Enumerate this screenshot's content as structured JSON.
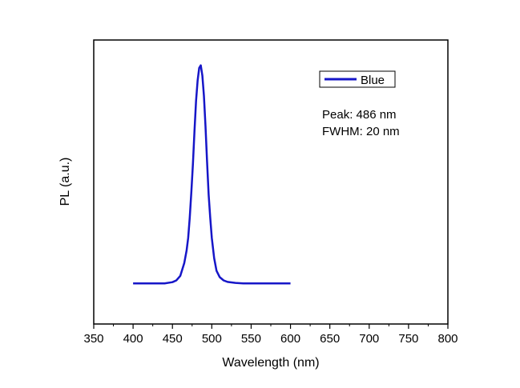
{
  "chart_data": {
    "type": "line",
    "title": "",
    "xlabel": "Wavelength (nm)",
    "ylabel": "PL (a.u.)",
    "xlim": [
      350,
      800
    ],
    "ylim": [
      0,
      1.12
    ],
    "x_ticks": [
      "350",
      "400",
      "450",
      "500",
      "550",
      "600",
      "650",
      "700",
      "750",
      "800"
    ],
    "y_ticks_shown": false,
    "grid": false,
    "legend": {
      "position": "top-right"
    },
    "series": [
      {
        "name": "Blue",
        "color": "#1616c8",
        "x": [
          400,
          410,
          420,
          430,
          440,
          450,
          455,
          460,
          465,
          468,
          470,
          472,
          474,
          476,
          478,
          480,
          482,
          484,
          486,
          488,
          490,
          492,
          494,
          496,
          498,
          500,
          503,
          506,
          510,
          515,
          520,
          530,
          540,
          550,
          560,
          570,
          580,
          590,
          600
        ],
        "y": [
          0.16,
          0.16,
          0.16,
          0.16,
          0.16,
          0.165,
          0.172,
          0.19,
          0.24,
          0.29,
          0.34,
          0.42,
          0.52,
          0.63,
          0.76,
          0.88,
          0.96,
          1.01,
          1.02,
          0.98,
          0.9,
          0.78,
          0.64,
          0.51,
          0.42,
          0.34,
          0.26,
          0.21,
          0.185,
          0.172,
          0.166,
          0.162,
          0.16,
          0.16,
          0.16,
          0.16,
          0.16,
          0.16,
          0.16
        ]
      }
    ],
    "annotations": [
      "Peak: 486 nm",
      "FWHM: 20 nm"
    ]
  }
}
